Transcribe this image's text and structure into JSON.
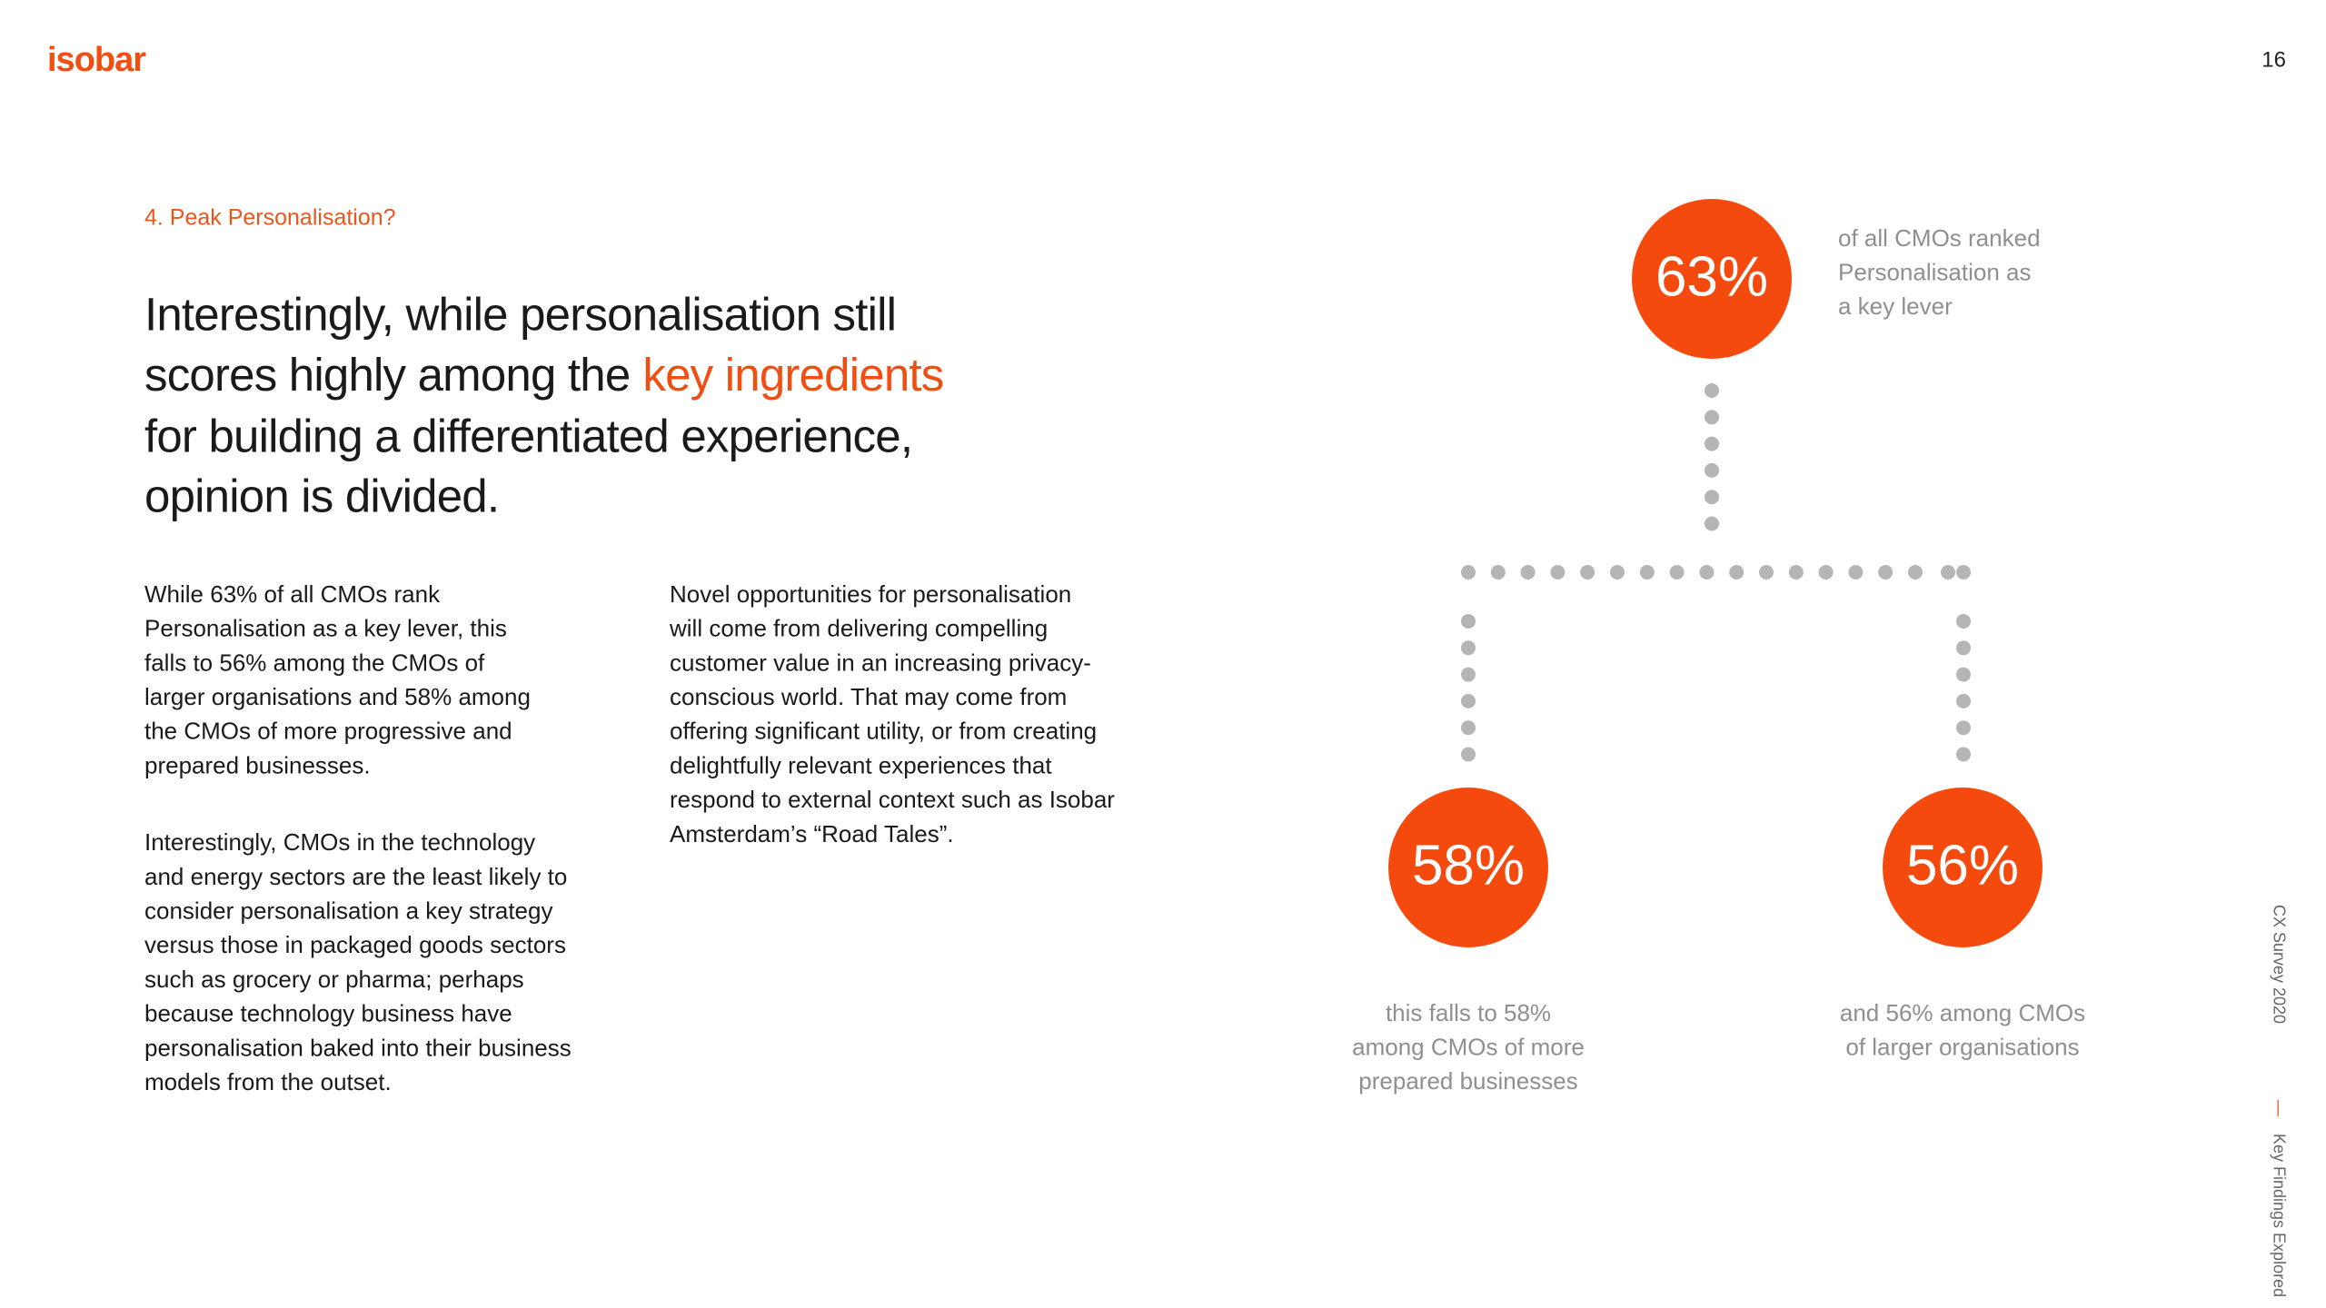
{
  "header": {
    "logo": "isobar",
    "page_number": "16"
  },
  "section_label": "4. Peak Personalisation?",
  "heading": {
    "line1": "Interestingly, while personalisation still",
    "line2_start": "scores highly among the",
    "line2_highlight": "key ingredients",
    "line3": "for building a differentiated experience,",
    "line4": "opinion is divided."
  },
  "body": {
    "column1": [
      [
        "While 63% of all CMOs rank",
        "Personalisation as a key lever, this",
        "falls to 56% among the CMOs of",
        "larger organisations and 58% among",
        "the CMOs of more progressive and",
        "prepared businesses."
      ],
      [
        "Interestingly, CMOs in the technology",
        "and energy sectors are the least likely to",
        "consider personalisation a key strategy",
        "versus those in packaged goods sectors",
        "such as grocery or pharma; perhaps",
        "because technology business have",
        "personalisation baked into their business",
        "models from the outset."
      ]
    ],
    "column2": [
      [
        "Novel opportunities for personalisation",
        "will come from delivering compelling",
        "customer value in an increasing privacy-",
        "conscious world. That may come from",
        "offering significant utility, or from creating",
        "delightfully relevant experiences that",
        "respond to external context such as Isobar",
        "Amsterdam’s “Road Tales”."
      ]
    ]
  },
  "diagram": {
    "top": {
      "stat": "63%",
      "caption": [
        "of all CMOs ranked",
        "Personalisation as",
        "a key lever"
      ]
    },
    "left": {
      "stat": "58%",
      "caption": [
        "this falls to 58%",
        "among CMOs of more",
        "prepared businesses"
      ]
    },
    "right": {
      "stat": "56%",
      "caption": [
        "and 56% among CMOs",
        "of larger organisations"
      ]
    }
  },
  "side": {
    "survey": "CX Survey 2020",
    "separator": "—",
    "section": "Key Findings Explored"
  }
}
